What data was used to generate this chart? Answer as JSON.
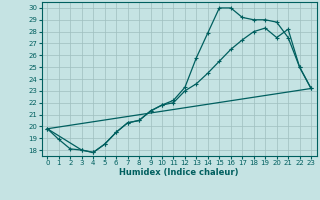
{
  "xlabel": "Humidex (Indice chaleur)",
  "bg_color": "#c5e3e3",
  "line_color": "#005f5f",
  "grid_color": "#9fbfbf",
  "xlim": [
    -0.5,
    23.5
  ],
  "ylim": [
    17.5,
    30.5
  ],
  "xticks": [
    0,
    1,
    2,
    3,
    4,
    5,
    6,
    7,
    8,
    9,
    10,
    11,
    12,
    13,
    14,
    15,
    16,
    17,
    18,
    19,
    20,
    21,
    22,
    23
  ],
  "yticks": [
    18,
    19,
    20,
    21,
    22,
    23,
    24,
    25,
    26,
    27,
    28,
    29,
    30
  ],
  "line1_x": [
    0,
    1,
    2,
    3,
    4,
    5,
    6,
    7,
    8,
    9,
    10,
    11,
    12,
    13,
    14,
    15,
    16,
    17,
    18,
    19,
    20,
    21,
    22,
    23
  ],
  "line1_y": [
    19.8,
    18.9,
    18.1,
    18.0,
    17.8,
    18.5,
    19.5,
    20.3,
    20.5,
    21.3,
    21.8,
    22.2,
    23.3,
    25.8,
    27.9,
    30.0,
    30.0,
    29.2,
    29.0,
    29.0,
    28.8,
    27.5,
    25.0,
    23.2
  ],
  "line2_x": [
    0,
    3,
    4,
    5,
    6,
    7,
    8,
    9,
    10,
    11,
    12,
    13,
    14,
    15,
    16,
    17,
    18,
    19,
    20,
    21,
    22,
    23
  ],
  "line2_y": [
    19.8,
    18.0,
    17.8,
    18.5,
    19.5,
    20.3,
    20.5,
    21.3,
    21.8,
    22.0,
    23.0,
    23.6,
    24.5,
    25.5,
    26.5,
    27.3,
    28.0,
    28.3,
    27.5,
    28.2,
    25.0,
    23.2
  ],
  "line3_x": [
    0,
    23
  ],
  "line3_y": [
    19.8,
    23.2
  ]
}
